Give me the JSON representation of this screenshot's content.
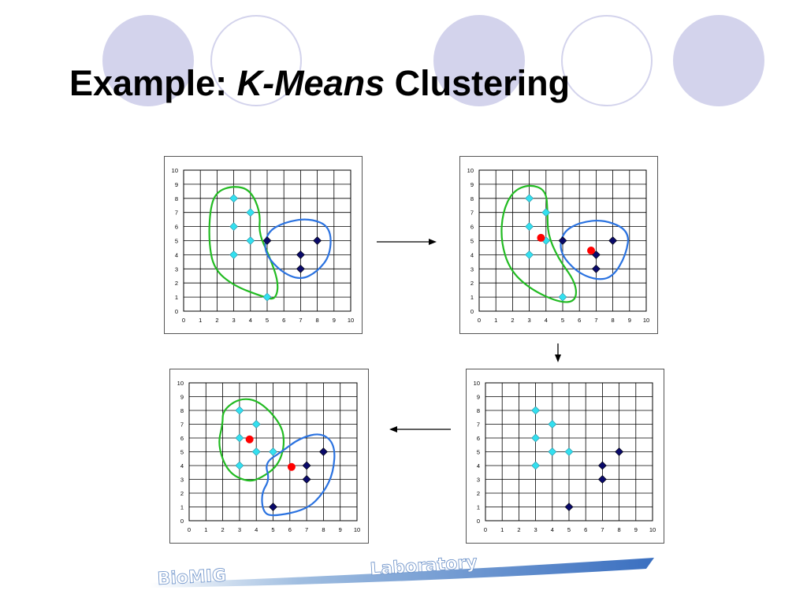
{
  "title": {
    "prefix": "Example: ",
    "italic": "K-Means",
    "suffix": " Clustering"
  },
  "logo_text": "BioMIG Laboratory",
  "colors": {
    "cluster_a": "#33e0f0",
    "cluster_b": "#0a0a6a",
    "centroid": "#ff0000",
    "outline_a": "#22bb22",
    "outline_b": "#2a72e0",
    "bg_circle": "#d3d3ec"
  },
  "chart_data": [
    {
      "type": "scatter",
      "step": 1,
      "xlim": [
        0,
        10
      ],
      "ylim": [
        0,
        10
      ],
      "xticks": [
        "0",
        "1",
        "2",
        "3",
        "4",
        "5",
        "6",
        "7",
        "8",
        "9",
        "10"
      ],
      "yticks": [
        "0",
        "1",
        "2",
        "3",
        "4",
        "5",
        "6",
        "7",
        "8",
        "9",
        "10"
      ],
      "grid": true,
      "series": [
        {
          "marker": "diamond",
          "color": "#33e0f0",
          "points": [
            [
              3,
              8
            ],
            [
              4,
              7
            ],
            [
              3,
              6
            ],
            [
              4,
              5
            ],
            [
              3,
              4
            ],
            [
              5,
              1
            ]
          ]
        },
        {
          "marker": "diamond",
          "color": "#0a0a6a",
          "points": [
            [
              5,
              5
            ],
            [
              7,
              4
            ],
            [
              8,
              5
            ],
            [
              7,
              3
            ]
          ]
        }
      ],
      "centroids": []
    },
    {
      "type": "scatter",
      "step": 2,
      "xlim": [
        0,
        10
      ],
      "ylim": [
        0,
        10
      ],
      "xticks": [
        "0",
        "1",
        "2",
        "3",
        "4",
        "5",
        "6",
        "7",
        "8",
        "9",
        "10"
      ],
      "yticks": [
        "0",
        "1",
        "2",
        "3",
        "4",
        "5",
        "6",
        "7",
        "8",
        "9",
        "10"
      ],
      "grid": true,
      "series": [
        {
          "marker": "diamond",
          "color": "#33e0f0",
          "points": [
            [
              3,
              8
            ],
            [
              4,
              7
            ],
            [
              3,
              6
            ],
            [
              4,
              5
            ],
            [
              3,
              4
            ],
            [
              5,
              1
            ]
          ]
        },
        {
          "marker": "diamond",
          "color": "#0a0a6a",
          "points": [
            [
              5,
              5
            ],
            [
              7,
              4
            ],
            [
              8,
              5
            ],
            [
              7,
              3
            ]
          ]
        }
      ],
      "centroids": [
        [
          3.7,
          5.2
        ],
        [
          6.7,
          4.3
        ]
      ]
    },
    {
      "type": "scatter",
      "step": 3,
      "xlim": [
        0,
        10
      ],
      "ylim": [
        0,
        10
      ],
      "xticks": [
        "0",
        "1",
        "2",
        "3",
        "4",
        "5",
        "6",
        "7",
        "8",
        "9",
        "10"
      ],
      "yticks": [
        "0",
        "1",
        "2",
        "3",
        "4",
        "5",
        "6",
        "7",
        "8",
        "9",
        "10"
      ],
      "grid": true,
      "series": [
        {
          "marker": "diamond",
          "color": "#33e0f0",
          "points": [
            [
              3,
              8
            ],
            [
              4,
              7
            ],
            [
              3,
              6
            ],
            [
              4,
              5
            ],
            [
              5,
              5
            ],
            [
              3,
              4
            ]
          ]
        },
        {
          "marker": "diamond",
          "color": "#0a0a6a",
          "points": [
            [
              7,
              4
            ],
            [
              8,
              5
            ],
            [
              7,
              3
            ],
            [
              5,
              1
            ]
          ]
        }
      ],
      "centroids": []
    },
    {
      "type": "scatter",
      "step": 4,
      "xlim": [
        0,
        10
      ],
      "ylim": [
        0,
        10
      ],
      "xticks": [
        "0",
        "1",
        "2",
        "3",
        "4",
        "5",
        "6",
        "7",
        "8",
        "9",
        "10"
      ],
      "yticks": [
        "0",
        "1",
        "2",
        "3",
        "4",
        "5",
        "6",
        "7",
        "8",
        "9",
        "10"
      ],
      "grid": true,
      "series": [
        {
          "marker": "diamond",
          "color": "#33e0f0",
          "points": [
            [
              3,
              8
            ],
            [
              4,
              7
            ],
            [
              3,
              6
            ],
            [
              4,
              5
            ],
            [
              5,
              5
            ],
            [
              3,
              4
            ]
          ]
        },
        {
          "marker": "diamond",
          "color": "#0a0a6a",
          "points": [
            [
              7,
              4
            ],
            [
              8,
              5
            ],
            [
              7,
              3
            ],
            [
              5,
              1
            ]
          ]
        }
      ],
      "centroids": [
        [
          3.6,
          5.9
        ],
        [
          6.1,
          3.9
        ]
      ]
    }
  ]
}
